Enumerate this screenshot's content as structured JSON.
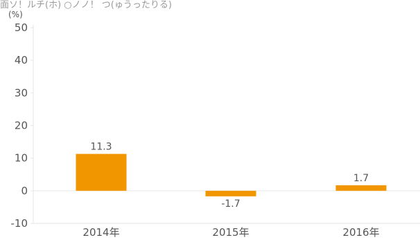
{
  "header_text": "面ソ！ルチ(ホ) ○ノノ！ つ(ゅうったりる)",
  "chart_data": {
    "type": "bar",
    "categories": [
      "2014年",
      "2015年",
      "2016年"
    ],
    "values": [
      11.3,
      -1.7,
      1.7
    ],
    "value_labels": [
      "11.3",
      "-1.7",
      "1.7"
    ],
    "y_unit": "(%)",
    "ylim": [
      -10,
      50
    ],
    "yticks": [
      -10,
      0,
      10,
      20,
      30,
      40,
      50
    ],
    "grid": false,
    "bar_color": "#f29600",
    "axis_color": "#e6e6e6"
  }
}
